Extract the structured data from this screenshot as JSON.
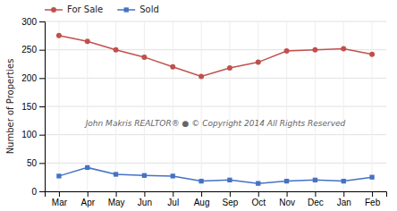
{
  "chart_data": {
    "type": "line",
    "categories": [
      "Mar",
      "Apr",
      "May",
      "Jun",
      "Jul",
      "Aug",
      "Sep",
      "Oct",
      "Nov",
      "Dec",
      "Jan",
      "Feb"
    ],
    "series": [
      {
        "name": "For Sale",
        "color": "#c0504d",
        "marker": "circle",
        "values": [
          275,
          265,
          250,
          237,
          220,
          203,
          218,
          228,
          248,
          250,
          252,
          242
        ]
      },
      {
        "name": "Sold",
        "color": "#4472c4",
        "marker": "square",
        "values": [
          27,
          42,
          30,
          28,
          27,
          18,
          20,
          14,
          18,
          20,
          18,
          25
        ]
      }
    ],
    "ylabel": "Number of Properties",
    "ylim": [
      0,
      300
    ],
    "yticks": [
      0,
      50,
      100,
      150,
      200,
      250,
      300
    ],
    "grid": true,
    "legend": "top",
    "annotations": [
      "John Makris REALTOR®  ●  © Copyright 2014 All Rights Reserved"
    ]
  }
}
